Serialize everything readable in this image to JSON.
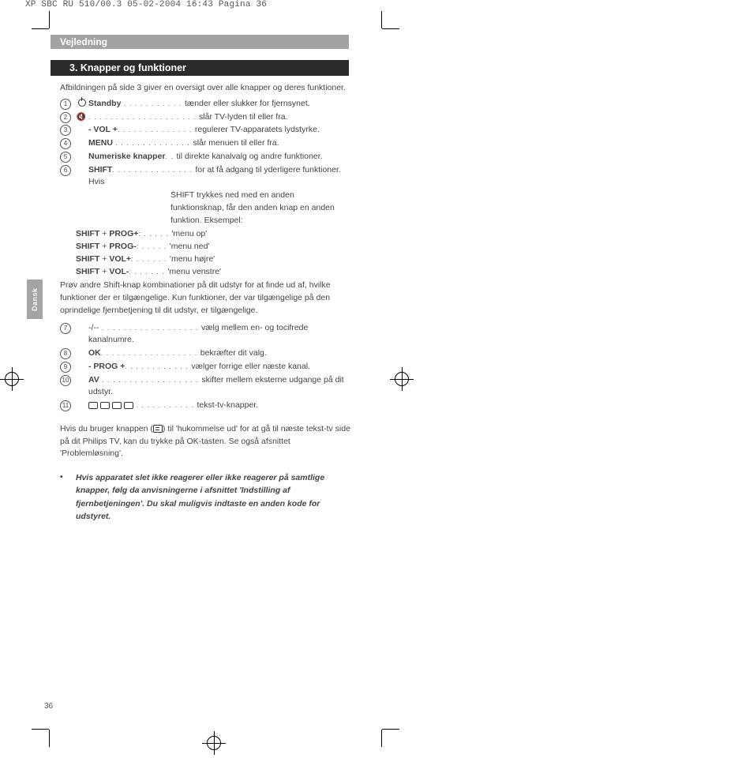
{
  "header": "XP SBC RU 510/00.3  05-02-2004  16:43  Pagina 36",
  "section_bar": "Vejledning",
  "title_bar": "3. Knapper og funktioner",
  "side_tab": "Dansk",
  "page_number": "36",
  "intro": "Afbildningen på side 3 giver en oversigt over alle knapper og deres funktioner.",
  "items1": [
    {
      "n": "1",
      "icon": "power",
      "label": "Standby",
      "dots": " . . . . . . . . . . . ",
      "desc": "tænder eller slukker for fjernsynet."
    },
    {
      "n": "2",
      "icon": "mute",
      "label": "",
      "dots": " . . . . . . . . . . . . . . . . . . . . ",
      "desc": "slår TV-lyden til eller fra."
    },
    {
      "n": "3",
      "icon": "",
      "label": "- VOL +",
      "dots": ". . . . . . . . . . . . . . ",
      "desc": "regulerer TV-apparatets lydstyrke."
    },
    {
      "n": "4",
      "icon": "",
      "label": "MENU",
      "dots": " . . . . . . . . . . . . . . ",
      "desc": "slår menuen til eller fra."
    },
    {
      "n": "5",
      "icon": "",
      "label": "Numeriske knapper",
      "dots": ". . ",
      "desc": "til direkte kanalvalg og andre funktioner."
    }
  ],
  "item6": {
    "n": "6",
    "label": "SHIFT",
    "dots": ". . . . . . . . . . . . . . . ",
    "desc": "for at få adgang til yderligere funktioner. Hvis"
  },
  "item6_cont": [
    "SHIFT trykkes ned med en anden",
    "funktionsknap, får den anden knap en anden",
    "funktion. Eksempel:"
  ],
  "shift_rows": [
    {
      "combo": "SHIFT + PROG+",
      "dots": ": . . . . .",
      "desc": "'menu op'"
    },
    {
      "combo": "SHIFT + PROG-",
      "dots": ": . . . . .",
      "desc": "'menu ned'"
    },
    {
      "combo": "SHIFT + VOL+",
      "dots": ": . . . . . .",
      "desc": "'menu højre'"
    },
    {
      "combo": "SHIFT + VOL-",
      "dots": ":  . . . . . .",
      "desc": "'menu venstre'"
    }
  ],
  "para_mid": "Prøv andre Shift-knap kombinationer på dit udstyr for at finde ud af, hvilke funktioner der er tilgængelige. Kun funktioner, der var tilgængelige på den oprindelige fjernbetjening til dit udstyr, er tilgængelige.",
  "items2": [
    {
      "n": "7",
      "label": "-/--",
      "dots": "  . . . . . . . . . . . . . . . . . . ",
      "desc": "vælg mellem en- og tocifrede kanalnumre."
    },
    {
      "n": "8",
      "label": "OK",
      "dots": ". . . . . . . . . . . . . . . . . . ",
      "desc": "bekræfter dit valg."
    },
    {
      "n": "9",
      "label": "- PROG +",
      "dots": ". . . . . . . . . . . . ",
      "desc": "vælger forrige eller næste kanal."
    },
    {
      "n": "10",
      "label": "AV",
      "dots": " . . . . . . . . . . . . . . . . . . ",
      "desc": "skifter mellem eksterne udgange på dit udstyr."
    },
    {
      "n": "11",
      "label": "tt",
      "dots": "  . . . . . . . . . . . ",
      "desc": "tekst-tv-knapper."
    }
  ],
  "note": "Hvis du bruger knappen (   ) til 'hukommelse ud' for at gå til næste tekst-tv side på dit Philips TV, kan du trykke på OK-tasten. Se også afsnittet 'Problemløsning'.",
  "bullet": "Hvis apparatet slet ikke reagerer eller ikke reagerer på samtlige knapper, følg da anvisningerne i afsnittet 'Indstilling af fjernbetjeningen'. Du skal muligvis indtaste en anden kode for udstyret."
}
